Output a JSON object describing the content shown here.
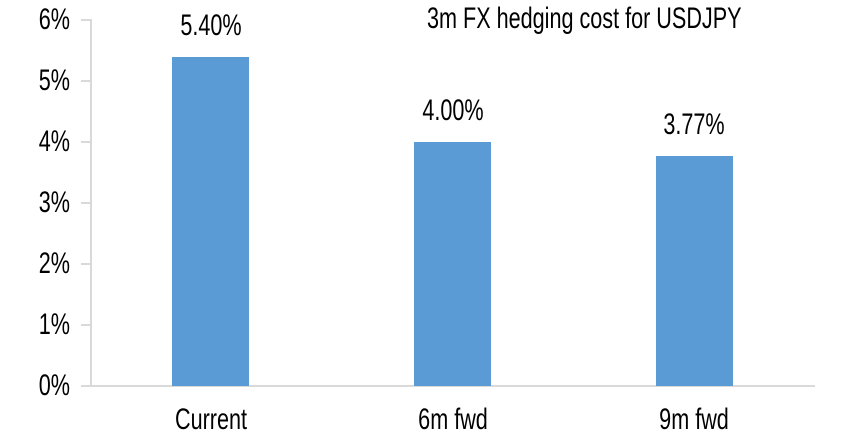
{
  "chart_data": {
    "type": "bar",
    "title": "3m FX hedging cost for USDJPY",
    "categories": [
      "Current",
      "6m fwd",
      "9m fwd"
    ],
    "values": [
      5.4,
      4.0,
      3.77
    ],
    "data_labels": [
      "5.40%",
      "4.00%",
      "3.77%"
    ],
    "y_axis": {
      "ticks": [
        "6%",
        "5%",
        "4%",
        "3%",
        "2%",
        "1%",
        "0%"
      ],
      "min": 0,
      "max": 6,
      "step": 1
    },
    "xlabel": "",
    "ylabel": "",
    "grid": false,
    "legend": false,
    "colors": {
      "bar": "#5B9BD5",
      "axis": "#D9D9D9",
      "text": "#000000",
      "background": "#FFFFFF"
    }
  }
}
